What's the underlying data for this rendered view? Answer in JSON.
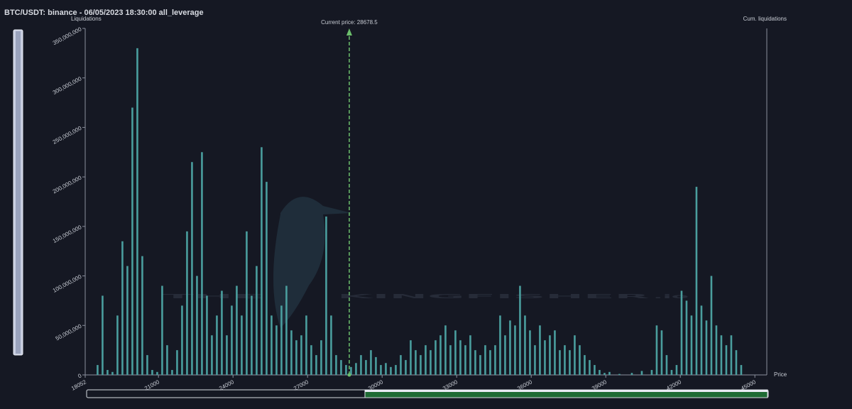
{
  "chart_data": {
    "type": "bar",
    "title": "BTC/USDT: binance - 06/05/2023 18:30:00 all_leverage",
    "y_label": "Liquidations",
    "y2_label": "Cum. liquidations",
    "x_label": "Price",
    "current_price": 28678.5,
    "current_price_label": "Current price: 28678.5",
    "watermark": {
      "left": "THE",
      "right": "KINGFISHER",
      "suffix": ".io"
    },
    "color": "#4a9e9e",
    "current_price_color": "#6cbf6c",
    "xlim": [
      18052,
      45480
    ],
    "xticks": [
      18052,
      21000,
      24000,
      27000,
      30000,
      33000,
      36000,
      39000,
      42000,
      45000
    ],
    "ylim": [
      0,
      350000000
    ],
    "yticks": [
      0,
      {
        "value": 50000000,
        "label": "50,000,000"
      },
      {
        "value": 100000000,
        "label": "100,000,000"
      },
      {
        "value": 150000000,
        "label": "150,000,000"
      },
      {
        "value": 200000000,
        "label": "200,000,000"
      },
      {
        "value": 250000000,
        "label": "250,000,000"
      },
      {
        "value": 300000000,
        "label": "300,000,000"
      },
      {
        "value": 350000000,
        "label": "350,000,000"
      }
    ],
    "x": [
      18550,
      18750,
      18950,
      19150,
      19350,
      19550,
      19750,
      19950,
      20150,
      20350,
      20550,
      20750,
      20950,
      21150,
      21350,
      21550,
      21750,
      21950,
      22150,
      22350,
      22550,
      22750,
      22950,
      23150,
      23350,
      23550,
      23750,
      23950,
      24150,
      24350,
      24550,
      24750,
      24950,
      25150,
      25350,
      25550,
      25750,
      25950,
      26150,
      26350,
      26550,
      26750,
      26950,
      27150,
      27350,
      27550,
      27750,
      27950,
      28150,
      28350,
      28550,
      28750,
      28950,
      29150,
      29350,
      29550,
      29750,
      29950,
      30150,
      30350,
      30550,
      30750,
      30950,
      31150,
      31350,
      31550,
      31750,
      31950,
      32150,
      32350,
      32550,
      32750,
      32950,
      33150,
      33350,
      33550,
      33750,
      33950,
      34150,
      34350,
      34550,
      34750,
      34950,
      35150,
      35350,
      35550,
      35750,
      35950,
      36150,
      36350,
      36550,
      36750,
      36950,
      37150,
      37350,
      37550,
      37750,
      37950,
      38150,
      38350,
      38550,
      38750,
      38950,
      39150,
      39550,
      40050,
      40450,
      40850,
      41050,
      41250,
      41450,
      41650,
      41850,
      42050,
      42250,
      42450,
      42650,
      42850,
      43050,
      43250,
      43450,
      43650,
      43850,
      44050,
      44250,
      44450
    ],
    "values": [
      10000000,
      80000000,
      5000000,
      3000000,
      60000000,
      135000000,
      110000000,
      270000000,
      330000000,
      120000000,
      20000000,
      5000000,
      3000000,
      90000000,
      30000000,
      5000000,
      25000000,
      70000000,
      145000000,
      215000000,
      100000000,
      225000000,
      80000000,
      40000000,
      60000000,
      85000000,
      40000000,
      70000000,
      90000000,
      60000000,
      145000000,
      80000000,
      110000000,
      230000000,
      195000000,
      60000000,
      50000000,
      70000000,
      90000000,
      45000000,
      35000000,
      40000000,
      60000000,
      30000000,
      20000000,
      35000000,
      160000000,
      60000000,
      20000000,
      15000000,
      10000000,
      8000000,
      12000000,
      20000000,
      15000000,
      25000000,
      18000000,
      10000000,
      12000000,
      8000000,
      10000000,
      20000000,
      15000000,
      35000000,
      25000000,
      20000000,
      30000000,
      25000000,
      35000000,
      40000000,
      50000000,
      30000000,
      45000000,
      35000000,
      30000000,
      40000000,
      25000000,
      20000000,
      30000000,
      25000000,
      30000000,
      60000000,
      40000000,
      55000000,
      50000000,
      90000000,
      60000000,
      45000000,
      30000000,
      50000000,
      35000000,
      40000000,
      45000000,
      25000000,
      30000000,
      25000000,
      40000000,
      30000000,
      20000000,
      15000000,
      10000000,
      5000000,
      2000000,
      3000000,
      1000000,
      2000000,
      4000000,
      5000000,
      50000000,
      45000000,
      20000000,
      5000000,
      10000000,
      85000000,
      75000000,
      60000000,
      190000000,
      70000000,
      55000000,
      100000000,
      50000000,
      40000000,
      30000000,
      40000000,
      25000000,
      10000000
    ]
  }
}
